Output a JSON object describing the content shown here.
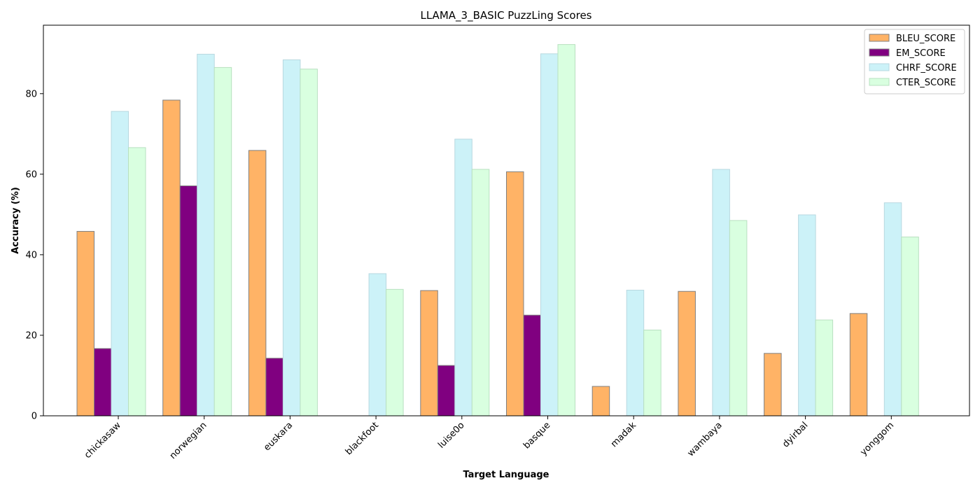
{
  "chart_data": {
    "type": "bar",
    "title": "LLAMA_3_BASIC PuzzLing Scores",
    "xlabel": "Target Language",
    "ylabel": "Accuracy (%)",
    "ylim": [
      0,
      97
    ],
    "yticks": [
      0,
      20,
      40,
      60,
      80
    ],
    "grid": false,
    "legend_position": "top-right",
    "categories": [
      "chickasaw",
      "norwegian",
      "euskara",
      "blackfoot",
      "luise0o",
      "basque",
      "madak",
      "wambaya",
      "dyirbal",
      "yonggom"
    ],
    "series": [
      {
        "name": "BLEU_SCORE",
        "color": "#ffb366",
        "edge": "#808080",
        "values": [
          45.8,
          78.4,
          65.9,
          0.0,
          31.1,
          60.6,
          7.3,
          30.9,
          15.5,
          25.4
        ]
      },
      {
        "name": "EM_SCORE",
        "color": "#800080",
        "edge": "#808080",
        "values": [
          16.7,
          57.1,
          14.3,
          0.0,
          12.5,
          25.0,
          0.0,
          0.0,
          0.0,
          0.0
        ]
      },
      {
        "name": "CHRF_SCORE",
        "color": "#ccf2f8",
        "edge": "#b8d8e0",
        "values": [
          75.6,
          89.8,
          88.4,
          35.3,
          68.7,
          89.9,
          31.2,
          61.2,
          49.9,
          52.9
        ]
      },
      {
        "name": "CTER_SCORE",
        "color": "#d9ffe0",
        "edge": "#b8e0c0",
        "values": [
          66.6,
          86.5,
          86.1,
          31.4,
          61.2,
          92.2,
          21.3,
          48.5,
          23.8,
          44.4
        ]
      }
    ]
  }
}
